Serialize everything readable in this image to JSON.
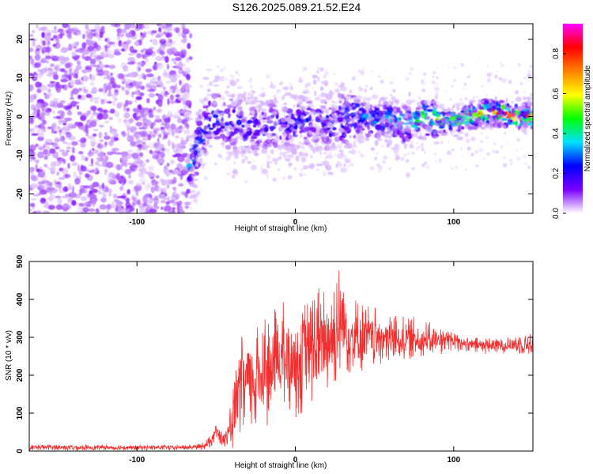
{
  "title": "S126.2025.089.21.52.E24",
  "chart_data": [
    {
      "type": "heatmap",
      "title": "S126.2025.089.21.52.E24",
      "xlabel": "Height of straight line (km)",
      "ylabel": "Frequency (Hz)",
      "xlim": [
        -168,
        150
      ],
      "ylim": [
        -25,
        24
      ],
      "x_ticks": [
        -100,
        0,
        100
      ],
      "x_tick_labels": [
        "-100",
        "0",
        "100"
      ],
      "y_ticks": [
        -20,
        -10,
        0,
        10,
        20
      ],
      "y_tick_labels": [
        "-20",
        "-10",
        "0",
        "10",
        "20"
      ],
      "colorbar": {
        "label": "Normalized spectral amplitude",
        "range": [
          0.0,
          0.95
        ],
        "ticks": [
          0.0,
          0.2,
          0.4,
          0.6,
          0.8
        ],
        "tick_labels": [
          "0.0",
          "0.2",
          "0.4",
          "0.6",
          "0.8"
        ],
        "colormap": [
          "#ffffff",
          "#7a00ff",
          "#0000ff",
          "#00e0ff",
          "#00ff00",
          "#ffff00",
          "#ff8000",
          "#ff0000",
          "#ff00ff"
        ]
      },
      "ridge": {
        "x": [
          -67,
          -62,
          -58,
          -55,
          -50,
          -40,
          -30,
          -20,
          -10,
          0,
          10,
          20,
          30,
          40,
          50,
          60,
          70,
          80,
          90,
          100,
          110,
          120,
          130,
          140,
          148
        ],
        "y": [
          -13,
          -8,
          -4,
          -1,
          0,
          -2,
          -3,
          -3,
          -2,
          -2,
          -1,
          -2,
          -1,
          0,
          -1,
          -1,
          -2,
          0,
          -1,
          -1,
          0,
          1,
          1,
          0,
          0
        ],
        "amplitude": [
          0.3,
          0.3,
          0.25,
          0.25,
          0.3,
          0.2,
          0.2,
          0.2,
          0.2,
          0.2,
          0.2,
          0.2,
          0.25,
          0.3,
          0.3,
          0.35,
          0.4,
          0.5,
          0.5,
          0.55,
          0.6,
          0.7,
          0.8,
          0.85,
          0.75
        ]
      },
      "noise_region_x": [
        -168,
        -66
      ]
    },
    {
      "type": "line",
      "xlabel": "Height of straight line (km)",
      "ylabel": "SNR (10 * v/v)",
      "xlim": [
        -168,
        150
      ],
      "ylim": [
        0,
        500
      ],
      "x_ticks": [
        -100,
        0,
        100
      ],
      "x_tick_labels": [
        "-100",
        "0",
        "100"
      ],
      "y_ticks": [
        0,
        100,
        200,
        300,
        400,
        500
      ],
      "y_tick_labels": [
        "0",
        "100",
        "200",
        "300",
        "400",
        "500"
      ],
      "line_color": "#f03030",
      "series": [
        {
          "x": [
            -168,
            -150,
            -130,
            -110,
            -90,
            -70,
            -60,
            -55,
            -52,
            -50,
            -48,
            -45,
            -42,
            -40,
            -38,
            -35,
            -32,
            -30,
            -25,
            -20,
            -15,
            -10,
            -5,
            0,
            5,
            10,
            15,
            20,
            25,
            28,
            30,
            32,
            35,
            40,
            45,
            50,
            60,
            70,
            80,
            90,
            95,
            100,
            105,
            110,
            115,
            120,
            130,
            140,
            150
          ],
          "y": [
            10,
            10,
            10,
            10,
            10,
            10,
            12,
            20,
            40,
            60,
            50,
            30,
            40,
            80,
            120,
            160,
            180,
            190,
            200,
            230,
            220,
            250,
            240,
            240,
            270,
            270,
            270,
            280,
            300,
            320,
            340,
            320,
            300,
            290,
            300,
            300,
            290,
            290,
            290,
            290,
            300,
            300,
            290,
            280,
            280,
            280,
            280,
            280,
            280
          ],
          "y_min": [
            2,
            2,
            2,
            2,
            2,
            2,
            2,
            5,
            15,
            30,
            20,
            5,
            5,
            5,
            5,
            10,
            20,
            20,
            40,
            60,
            60,
            60,
            80,
            80,
            100,
            120,
            130,
            150,
            170,
            180,
            200,
            200,
            200,
            200,
            210,
            220,
            230,
            240,
            250,
            255,
            255,
            260,
            260,
            255,
            255,
            255,
            255,
            255,
            255
          ],
          "y_max": [
            18,
            18,
            16,
            16,
            16,
            16,
            20,
            35,
            60,
            70,
            55,
            50,
            90,
            150,
            200,
            290,
            340,
            300,
            320,
            370,
            380,
            410,
            390,
            360,
            400,
            420,
            440,
            470,
            490,
            500,
            480,
            450,
            420,
            400,
            390,
            380,
            370,
            360,
            350,
            330,
            320,
            310,
            300,
            300,
            300,
            300,
            300,
            310,
            310
          ]
        }
      ]
    }
  ]
}
